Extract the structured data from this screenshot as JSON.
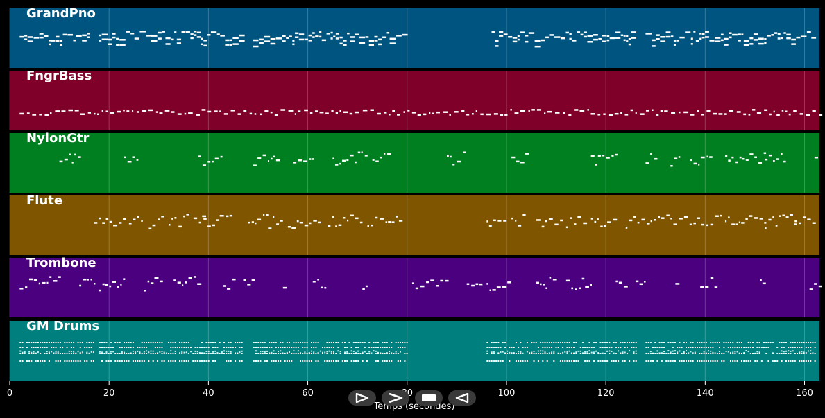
{
  "chart_data": {
    "type": "piano-roll",
    "xlabel": "Temps (secondes)",
    "xlim": [
      0,
      163
    ],
    "x_ticks": [
      0,
      20,
      40,
      60,
      80,
      100,
      120,
      140,
      160
    ],
    "tick_labels": [
      "0",
      "20",
      "40",
      "60",
      "80",
      "100",
      "120",
      "140",
      "160"
    ],
    "grid": true,
    "tracks": [
      {
        "name": "GrandPno",
        "color": "#005580",
        "segments": [
          [
            2,
            16
          ],
          [
            18,
            47
          ],
          [
            49,
            80
          ],
          [
            97,
            126
          ],
          [
            128,
            162
          ]
        ],
        "density": "dense"
      },
      {
        "name": "FngrBass",
        "color": "#7f0028",
        "segments": [
          [
            2,
            163
          ]
        ],
        "density": "sparse"
      },
      {
        "name": "NylonGtr",
        "color": "#007f20",
        "segments": [
          [
            10,
            14
          ],
          [
            23,
            26
          ],
          [
            38,
            43
          ],
          [
            49,
            53
          ],
          [
            53,
            54
          ],
          [
            57,
            61
          ],
          [
            65,
            72
          ],
          [
            73,
            77
          ],
          [
            88,
            92
          ],
          [
            101,
            104
          ],
          [
            117,
            122
          ],
          [
            128,
            130
          ],
          [
            133,
            135
          ],
          [
            137,
            141
          ],
          [
            144,
            152
          ],
          [
            152,
            156
          ],
          [
            162,
            163
          ]
        ],
        "density": "phrase"
      },
      {
        "name": "Flute",
        "color": "#7f5500",
        "segments": [
          [
            17,
            23
          ],
          [
            24,
            27
          ],
          [
            28,
            31
          ],
          [
            32,
            36
          ],
          [
            37,
            39
          ],
          [
            39,
            45
          ],
          [
            48,
            52
          ],
          [
            52,
            55
          ],
          [
            56,
            63
          ],
          [
            64,
            71
          ],
          [
            72,
            79
          ],
          [
            96,
            100
          ],
          [
            101,
            104
          ],
          [
            106,
            111
          ],
          [
            112,
            116
          ],
          [
            117,
            122
          ],
          [
            124,
            129
          ],
          [
            129,
            133
          ],
          [
            133,
            143
          ],
          [
            144,
            152
          ],
          [
            152,
            158
          ],
          [
            158,
            162
          ]
        ],
        "density": "phrase"
      },
      {
        "name": "Trombone",
        "color": "#4a007f",
        "segments": [
          [
            2,
            10
          ],
          [
            14,
            17
          ],
          [
            18,
            23
          ],
          [
            27,
            31
          ],
          [
            33,
            38
          ],
          [
            43,
            45
          ],
          [
            47,
            49
          ],
          [
            55,
            56
          ],
          [
            61,
            64
          ],
          [
            71,
            72
          ],
          [
            81,
            88
          ],
          [
            92,
            95
          ],
          [
            96,
            101
          ],
          [
            106,
            110
          ],
          [
            112,
            117
          ],
          [
            122,
            124
          ],
          [
            126,
            128
          ],
          [
            134,
            135
          ],
          [
            139,
            142
          ],
          [
            151,
            152
          ],
          [
            161,
            163
          ]
        ],
        "density": "phrase"
      },
      {
        "name": "GM Drums",
        "color": "#007f7f",
        "segments": [
          [
            2,
            17
          ],
          [
            18,
            47
          ],
          [
            49,
            80
          ],
          [
            96,
            126
          ],
          [
            128,
            162
          ]
        ],
        "density": "drums"
      }
    ]
  },
  "controls": [
    {
      "name": "play-forward",
      "icon": "play-outline-icon"
    },
    {
      "name": "next",
      "icon": "chevron-right-icon"
    },
    {
      "name": "stop",
      "icon": "stop-icon"
    },
    {
      "name": "play-reverse",
      "icon": "play-reverse-outline-icon"
    }
  ]
}
